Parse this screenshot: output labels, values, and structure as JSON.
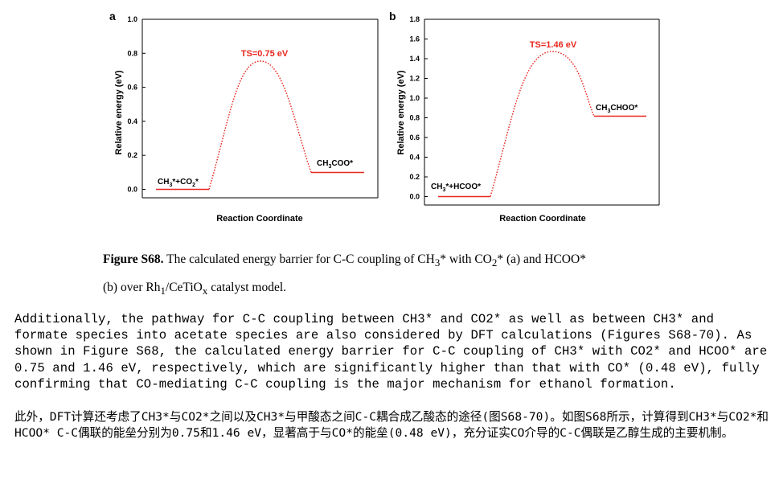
{
  "figure": {
    "charts": [
      {
        "label": "a",
        "xlabel": "Reaction Coordinate",
        "ylabel": "Relative energy (eV)",
        "yticks": [
          "0.0",
          "0.2",
          "0.4",
          "0.6",
          "0.8",
          "1.0"
        ],
        "ylim": [
          0,
          1.0
        ],
        "levels": [
          {
            "label_main": "CH",
            "sub1": "3",
            "mid": "*+CO",
            "sub2": "2",
            "tail": "*",
            "energy": 0.0
          },
          {
            "label_main": "CH",
            "sub1": "3",
            "mid": "COO*",
            "sub2": "",
            "tail": "",
            "energy": 0.1
          }
        ],
        "ts": {
          "label": "TS=0.75 eV",
          "energy": 0.75
        }
      },
      {
        "label": "b",
        "xlabel": "Reaction Coordinate",
        "ylabel": "Relative energy (eV)",
        "yticks": [
          "0.0",
          "0.2",
          "0.4",
          "0.6",
          "0.8",
          "1.0",
          "1.2",
          "1.4",
          "1.6",
          "1.8"
        ],
        "ylim": [
          0,
          1.8
        ],
        "levels": [
          {
            "label_main": "CH",
            "sub1": "3",
            "mid": "*+HCOO*",
            "sub2": "",
            "tail": "",
            "energy": 0.0
          },
          {
            "label_main": "CH",
            "sub1": "3",
            "mid": "CHOO*",
            "sub2": "",
            "tail": "",
            "energy": 0.82
          }
        ],
        "ts": {
          "label": "TS=1.46 eV",
          "energy": 1.46
        }
      }
    ]
  },
  "chart_data": [
    {
      "type": "line",
      "title": "",
      "xlabel": "Reaction Coordinate",
      "ylabel": "Relative energy (eV)",
      "ylim": [
        0,
        1.0
      ],
      "series": [
        {
          "values": [
            0.0,
            0.75,
            0.1
          ]
        }
      ],
      "categories": [
        "CH3*+CO2*",
        "TS=0.75 eV",
        "CH3COO*"
      ]
    },
    {
      "type": "line",
      "title": "",
      "xlabel": "Reaction Coordinate",
      "ylabel": "Relative energy (eV)",
      "ylim": [
        0,
        1.8
      ],
      "series": [
        {
          "values": [
            0.0,
            1.46,
            0.82
          ]
        }
      ],
      "categories": [
        "CH3*+HCOO*",
        "TS=1.46 eV",
        "CH3CHOO*"
      ]
    }
  ],
  "caption": {
    "bold": "Figure S68.",
    "line1_a": " The calculated energy barrier for C-C coupling of CH",
    "sub3": "3",
    "line1_b": "* with CO",
    "sub2": "2",
    "line1_c": "* (a) and HCOO*",
    "line2_a": "(b) over Rh",
    "sub1": "1",
    "line2_b": "/CeTiO",
    "subx": "x",
    "line2_c": " catalyst model."
  },
  "paragraph_en": "Additionally, the pathway for C-C coupling between CH3* and CO2* as well as between CH3* and formate species into acetate species are also considered by DFT calculations (Figures S68-70). As shown in Figure S68, the calculated energy barrier for C-C coupling of CH3* with CO2* and HCOO* are 0.75 and 1.46 eV, respectively, which are significantly higher than that with CO* (0.48 eV), fully confirming that CO-mediating C-C coupling is the major mechanism for ethanol formation.",
  "paragraph_zh": "此外，DFT计算还考虑了CH3*与CO2*之间以及CH3*与甲酸态之间C-C耦合成乙酸态的途径(图S68-70)。如图S68所示，计算得到CH3*与CO2*和HCOO* C-C偶联的能垒分别为0.75和1.46 eV，显著高于与CO*的能垒(0.48 eV)，充分证实CO介导的C-C偶联是乙醇生成的主要机制。"
}
